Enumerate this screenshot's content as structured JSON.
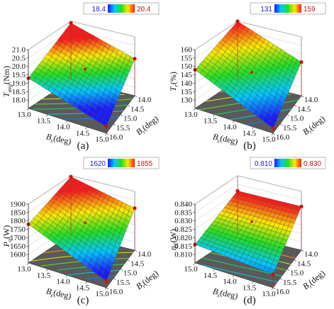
{
  "chart_data": [
    {
      "type": "surface3d",
      "caption": "(a)",
      "zlabel": "T_avg(Nm)",
      "zlabel_main": "T",
      "zlabel_sub": "avg",
      "zlabel_unit": "(Nm)",
      "zlim": [
        17.5,
        21.0
      ],
      "zticks": [
        "18.0",
        "18.5",
        "19.0",
        "19.5",
        "20.0",
        "20.5",
        "21.0"
      ],
      "x_axis": {
        "label_main": "B",
        "label_sub": "s",
        "label_unit": "(deg)",
        "ticks": [
          "13.0",
          "13.5",
          "14.0",
          "14.5",
          "15.0"
        ]
      },
      "y_axis": {
        "label_main": "B",
        "label_sub": "r",
        "label_unit": "(deg)",
        "ticks": [
          "14.0",
          "14.5",
          "15.0",
          "15.5",
          "16.0"
        ]
      },
      "colorbar": {
        "min": "18.4",
        "max": "20.4"
      },
      "corners": {
        "front_left": 19.3,
        "back_left": 20.9,
        "back_right": 19.7,
        "front_right": 17.9
      },
      "center_point": 19.6
    },
    {
      "type": "surface3d",
      "caption": "(b)",
      "zlabel_main": "T",
      "zlabel_sub": "r",
      "zlabel_unit": "(%)",
      "zlim": [
        125,
        160
      ],
      "zticks": [
        "130",
        "135",
        "140",
        "145",
        "150",
        "155",
        "160"
      ],
      "x_axis": {
        "label_main": "B",
        "label_sub": "s",
        "label_unit": "(deg)",
        "ticks": [
          "13.0",
          "13.5",
          "14.0",
          "14.5",
          "15.0"
        ]
      },
      "y_axis": {
        "label_main": "B",
        "label_sub": "r",
        "label_unit": "(deg)",
        "ticks": [
          "14.0",
          "14.5",
          "15.0",
          "15.5",
          "16.0"
        ]
      },
      "colorbar": {
        "min": "131",
        "max": "159"
      },
      "corners": {
        "front_left": 148,
        "back_left": 160,
        "back_right": 145,
        "front_right": 128
      },
      "center_point": 144
    },
    {
      "type": "surface3d",
      "caption": "(c)",
      "zlabel_main": "P",
      "zlabel_sub": "o",
      "zlabel_unit": "(W)",
      "zlim": [
        1550,
        1900
      ],
      "zticks": [
        "1600",
        "1650",
        "1700",
        "1750",
        "1800",
        "1850",
        "1900"
      ],
      "x_axis": {
        "label_main": "B",
        "label_sub": "s",
        "label_unit": "(deg)",
        "ticks": [
          "13.0",
          "13.5",
          "14.0",
          "14.5",
          "15.0"
        ]
      },
      "y_axis": {
        "label_main": "B",
        "label_sub": "r",
        "label_unit": "(deg)",
        "ticks": [
          "14.0",
          "14.5",
          "15.0",
          "15.5",
          "16.0"
        ]
      },
      "colorbar": {
        "min": "1620",
        "max": "1855"
      },
      "corners": {
        "front_left": 1780,
        "back_left": 1895,
        "back_right": 1800,
        "front_right": 1590
      },
      "center_point": 1765
    },
    {
      "type": "surface3d",
      "caption": "(d)",
      "zlabel_main": "η",
      "zlabel_sub": "E",
      "zlabel_unit": "(W)",
      "zlim": [
        0.805,
        0.84
      ],
      "zticks": [
        "0.810",
        "0.815",
        "0.820",
        "0.825",
        "0.830",
        "0.835",
        "0.840"
      ],
      "x_axis": {
        "label_main": "B",
        "label_sub": "s",
        "label_unit": "(deg)",
        "ticks": [
          "15.0",
          "14.5",
          "14.0",
          "13.5",
          "13.0"
        ]
      },
      "y_axis": {
        "label_main": "B",
        "label_sub": "r",
        "label_unit": "(deg)",
        "ticks": [
          "14.0",
          "14.5",
          "15.0",
          "15.5",
          "16.0"
        ]
      },
      "colorbar": {
        "min": "0.810",
        "max": "0.830"
      },
      "corners": {
        "front_left": 0.816,
        "back_left": 0.831,
        "back_right": 0.831,
        "front_right": 0.813
      },
      "center_point": 0.827
    }
  ]
}
